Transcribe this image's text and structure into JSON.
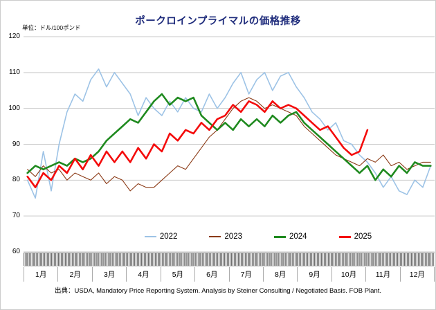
{
  "header": {
    "title": "ポークロインプライマルの価格推移",
    "unit_label": "単位：ドル/100ポンド"
  },
  "footer": {
    "source": "出典：USDA, Mandatory Price Reporting System. Analysis by Steiner Consulting  / Negotiated Basis. FOB Plant."
  },
  "chart_data": {
    "type": "line",
    "title": "ポークロインプライマルの価格推移",
    "ylabel": "ドル/100ポンド",
    "ylim": [
      60,
      120
    ],
    "yticks": [
      120,
      110,
      100,
      90,
      80,
      70,
      60
    ],
    "x_months": [
      "1月",
      "2月",
      "3月",
      "4月",
      "5月",
      "6月",
      "7月",
      "8月",
      "9月",
      "10月",
      "11月",
      "12月"
    ],
    "x_resolution": "weekly",
    "weeks_per_year": 52,
    "grid": true,
    "grid_color": "#c9c9c9",
    "legend_position": "bottom",
    "series": [
      {
        "name": "2022",
        "color": "#9DC3E6",
        "line_width": 1.6,
        "values": [
          80,
          75,
          88,
          77,
          90,
          99,
          104,
          102,
          108,
          111,
          106,
          110,
          107,
          104,
          98,
          103,
          100,
          98,
          102,
          99,
          103,
          100,
          99,
          104,
          100,
          103,
          107,
          110,
          104,
          108,
          110,
          105,
          109,
          110,
          106,
          103,
          99,
          97,
          94,
          96,
          91,
          90,
          87,
          85,
          82,
          78,
          81,
          77,
          76,
          80,
          78,
          84
        ]
      },
      {
        "name": "2023",
        "color": "#8B3A16",
        "line_width": 1.1,
        "values": [
          83,
          81,
          84,
          82,
          83,
          80,
          82,
          81,
          80,
          82,
          79,
          81,
          80,
          77,
          79,
          78,
          78,
          80,
          82,
          84,
          83,
          86,
          89,
          92,
          94,
          97,
          100,
          102,
          103,
          102,
          100,
          101,
          100,
          99,
          98,
          95,
          93,
          91,
          89,
          87,
          86,
          85,
          84,
          86,
          85,
          87,
          84,
          85,
          83,
          84,
          85,
          85
        ]
      },
      {
        "name": "2024",
        "color": "#1F8A1F",
        "line_width": 2.6,
        "values": [
          82,
          84,
          83,
          84,
          85,
          84,
          86,
          85,
          86,
          88,
          91,
          93,
          95,
          97,
          96,
          99,
          102,
          104,
          101,
          103,
          102,
          103,
          98,
          96,
          94,
          96,
          94,
          97,
          95,
          97,
          95,
          98,
          96,
          98,
          99,
          96,
          94,
          92,
          90,
          88,
          86,
          84,
          82,
          84,
          80,
          83,
          81,
          84,
          82,
          85,
          84,
          84
        ]
      },
      {
        "name": "2025",
        "color": "#F40B0B",
        "line_width": 2.6,
        "values": [
          81,
          78,
          82,
          80,
          84,
          82,
          86,
          83,
          87,
          84,
          88,
          85,
          88,
          85,
          89,
          86,
          90,
          88,
          93,
          91,
          94,
          93,
          96,
          94,
          97,
          98,
          101,
          99,
          102,
          101,
          99,
          102,
          100,
          101,
          100,
          98,
          96,
          94,
          95,
          92,
          89,
          87,
          88,
          94
        ]
      }
    ]
  }
}
